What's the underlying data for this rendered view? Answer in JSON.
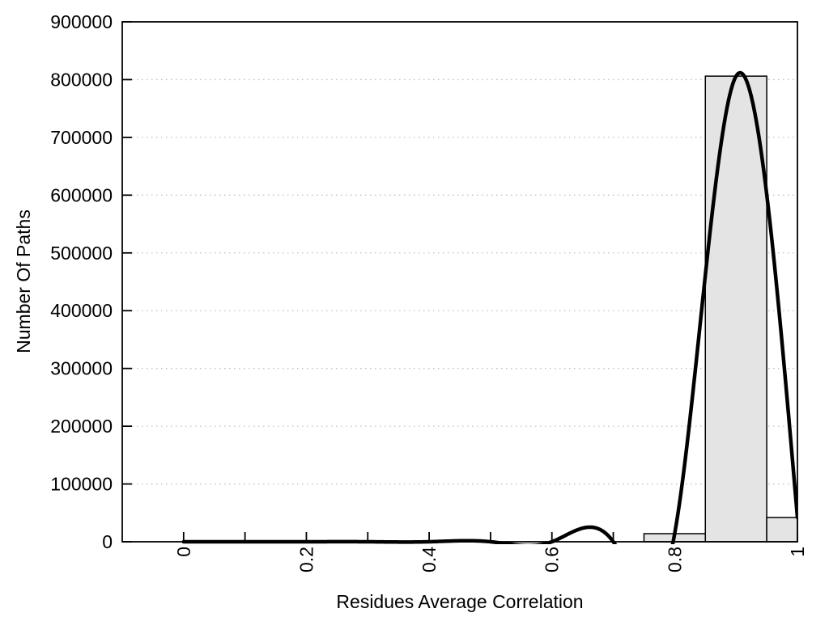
{
  "chart_data": {
    "type": "bar",
    "subtype": "histogram-with-spline-fit-curve",
    "title": "",
    "xlabel": "Residues Average Correlation",
    "ylabel": "Number Of Paths",
    "xlim": [
      -0.1,
      1.0
    ],
    "ylim": [
      0,
      900000
    ],
    "x_major_tick_values": [
      0,
      0.2,
      0.4,
      0.6,
      0.8,
      1
    ],
    "x_major_tick_labels": [
      "0",
      "0.2",
      "0.4",
      "0.6",
      "0.8",
      "1"
    ],
    "x_minor_tick_step": 0.1,
    "y_tick_values": [
      0,
      100000,
      200000,
      300000,
      400000,
      500000,
      600000,
      700000,
      800000,
      900000
    ],
    "y_tick_labels": [
      "0",
      "100000",
      "200000",
      "300000",
      "400000",
      "500000",
      "600000",
      "700000",
      "800000",
      "900000"
    ],
    "x_tick_labels_rotated_degrees": 90,
    "grid": {
      "horizontal": true,
      "vertical": false,
      "style": "dotted",
      "legend": "none"
    },
    "bar_width": 0.1,
    "bars": [
      {
        "center": 0.8,
        "value": 14000
      },
      {
        "center": 0.9,
        "value": 806000
      },
      {
        "center": 1.0,
        "value": 42000
      }
    ],
    "curve": {
      "type": "cubic-spline",
      "knots_x": [
        0,
        0.1,
        0.2,
        0.3,
        0.4,
        0.5,
        0.6,
        0.7,
        0.8,
        0.9,
        1.0
      ],
      "knots_y": [
        0,
        0,
        0,
        0,
        0,
        0,
        0,
        0,
        14000,
        806000,
        42000
      ],
      "peak_x": 0.9,
      "peak_y": 806000
    },
    "colors": {
      "background": "#ffffff",
      "bar_fill": "#e4e4e4",
      "bar_border": "#000000",
      "curve": "#000000",
      "grid": "#c0c0c0",
      "axis": "#000000",
      "text": "#000000"
    }
  }
}
